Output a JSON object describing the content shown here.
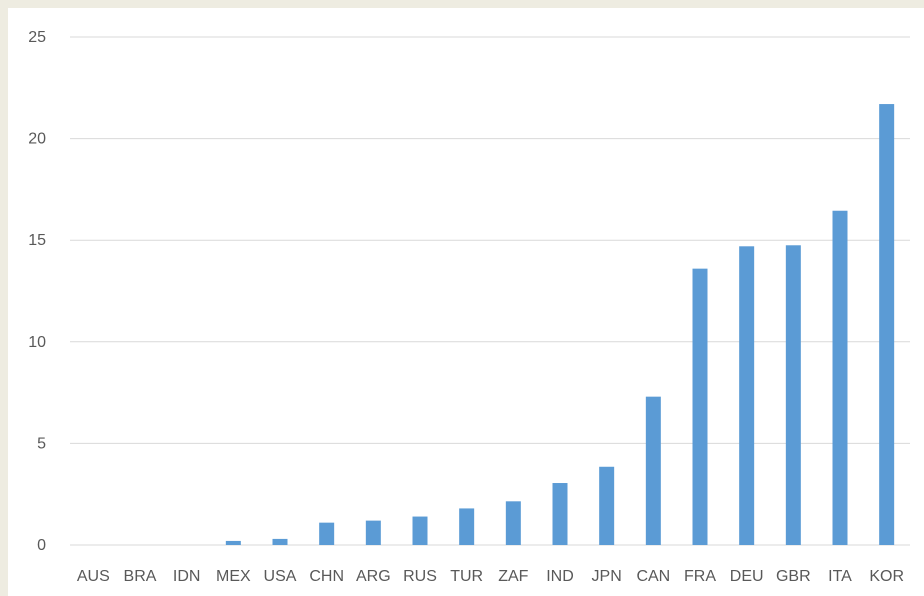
{
  "chart_data": {
    "type": "bar",
    "title": "",
    "xlabel": "",
    "ylabel": "",
    "categories": [
      "AUS",
      "BRA",
      "IDN",
      "MEX",
      "USA",
      "CHN",
      "ARG",
      "RUS",
      "TUR",
      "ZAF",
      "IND",
      "JPN",
      "CAN",
      "FRA",
      "DEU",
      "GBR",
      "ITA",
      "KOR"
    ],
    "values": [
      0,
      0,
      0,
      0.2,
      0.3,
      1.1,
      1.2,
      1.4,
      1.8,
      2.15,
      3.05,
      3.85,
      7.3,
      13.6,
      14.7,
      14.75,
      16.45,
      21.7
    ],
    "ylim": [
      0,
      25
    ],
    "yticks": [
      0,
      5,
      10,
      15,
      20,
      25
    ],
    "grid": true,
    "legend": "none",
    "bar_color": "#5b9bd5",
    "grid_color": "#d9d9d9",
    "label_color": "#595959"
  }
}
